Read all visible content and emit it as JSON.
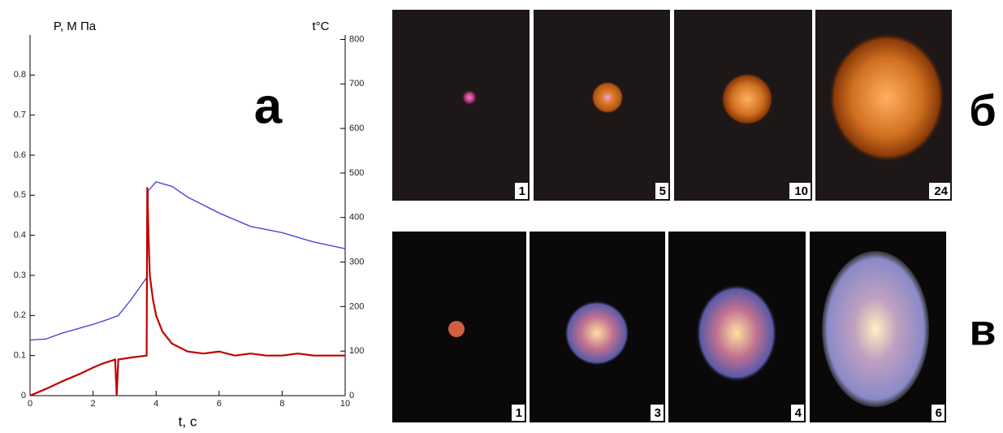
{
  "chart_data": {
    "type": "line",
    "annotation": "а",
    "y_label": "P, M Пa",
    "y2_label": "t°C",
    "x_label": "t, c",
    "xlim": [
      0,
      10
    ],
    "xticks": [
      0,
      2,
      4,
      6,
      8,
      10
    ],
    "ylim": [
      0,
      0.9
    ],
    "yticks": [
      0,
      0.1,
      0.2,
      0.3,
      0.4,
      0.5,
      0.6,
      0.7,
      0.8
    ],
    "y2lim": [
      0,
      810
    ],
    "y2ticks": [
      0,
      100,
      200,
      300,
      400,
      500,
      600,
      700,
      800
    ],
    "series": [
      {
        "color": "#3a3adc",
        "axis": "y2",
        "x": [
          0,
          0.5,
          1,
          1.5,
          2,
          2.5,
          2.8,
          3.2,
          3.7,
          3.75,
          4,
          4.5,
          5,
          6,
          7,
          8,
          9,
          10
        ],
        "values": [
          125,
          127,
          140,
          150,
          160,
          172,
          180,
          215,
          265,
          460,
          480,
          470,
          446,
          410,
          380,
          366,
          345,
          330
        ]
      },
      {
        "color": "#c00000",
        "axis": "y",
        "x": [
          0,
          0.3,
          0.6,
          1,
          1.3,
          1.6,
          2,
          2.3,
          2.7,
          2.75,
          2.8,
          3.2,
          3.7,
          3.72,
          3.76,
          3.8,
          3.9,
          4,
          4.2,
          4.5,
          5,
          5.5,
          6,
          6.5,
          7,
          7.5,
          8,
          8.5,
          9,
          9.5,
          10
        ],
        "values": [
          0,
          0.01,
          0.02,
          0.035,
          0.045,
          0.055,
          0.07,
          0.08,
          0.09,
          0.0,
          0.09,
          0.095,
          0.1,
          0.52,
          0.4,
          0.3,
          0.24,
          0.2,
          0.16,
          0.13,
          0.11,
          0.105,
          0.11,
          0.1,
          0.105,
          0.1,
          0.1,
          0.105,
          0.1,
          0.1,
          0.1
        ]
      }
    ]
  },
  "panels": [
    {
      "letter": "б",
      "frames": [
        "1",
        "5",
        "10",
        "24"
      ]
    },
    {
      "letter": "в",
      "frames": [
        "1",
        "3",
        "4",
        "6"
      ]
    }
  ]
}
